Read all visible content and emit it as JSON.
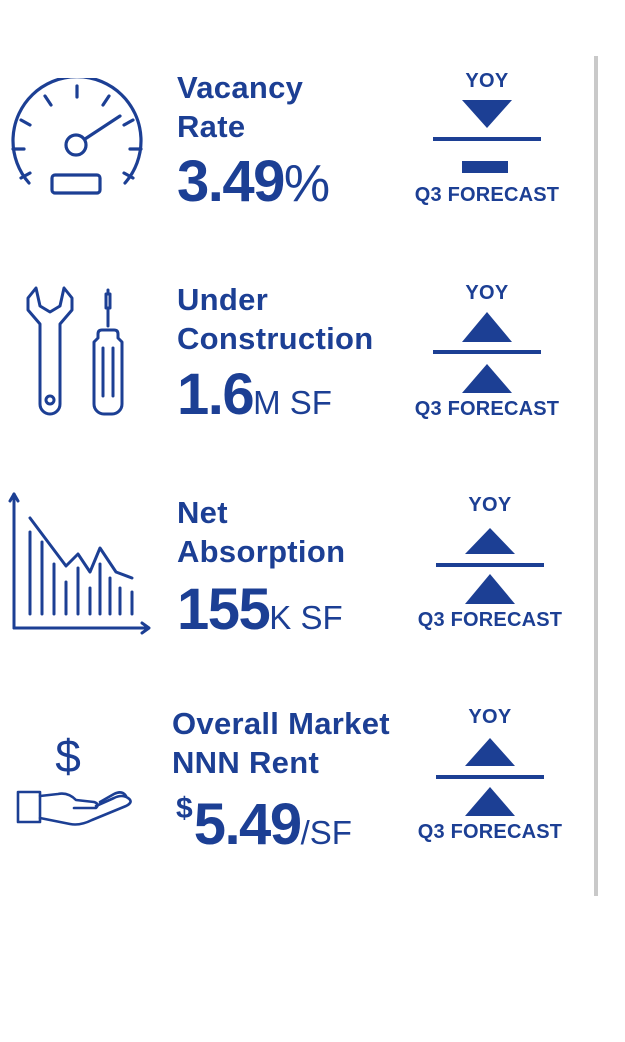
{
  "colors": {
    "primary": "#1c3f94",
    "divider": "#c9c9c9"
  },
  "metrics": [
    {
      "icon": "speedometer-icon",
      "label_lines": [
        "Vacancy",
        "Rate"
      ],
      "value_prefix": "",
      "value": "3.49",
      "value_suffix": "%",
      "yoy_label": "YOY",
      "yoy_trend": "down",
      "forecast_label": "Q3 FORECAST",
      "forecast_trend": "flat"
    },
    {
      "icon": "wrench-screwdriver-icon",
      "label_lines": [
        "Under",
        "Construction"
      ],
      "value_prefix": "",
      "value": "1.6",
      "value_suffix": "M SF",
      "yoy_label": "YOY",
      "yoy_trend": "up",
      "forecast_label": "Q3 FORECAST",
      "forecast_trend": "up"
    },
    {
      "icon": "declining-chart-icon",
      "label_lines": [
        "Net",
        "Absorption"
      ],
      "value_prefix": "",
      "value": "155",
      "value_suffix": "K SF",
      "yoy_label": "YOY",
      "yoy_trend": "up",
      "forecast_label": "Q3 FORECAST",
      "forecast_trend": "up"
    },
    {
      "icon": "hand-dollar-icon",
      "label_lines": [
        "Overall Market",
        "NNN Rent"
      ],
      "value_prefix": "$",
      "value": "5.49",
      "value_suffix": "/SF",
      "yoy_label": "YOY",
      "yoy_trend": "up",
      "forecast_label": "Q3 FORECAST",
      "forecast_trend": "up"
    }
  ]
}
